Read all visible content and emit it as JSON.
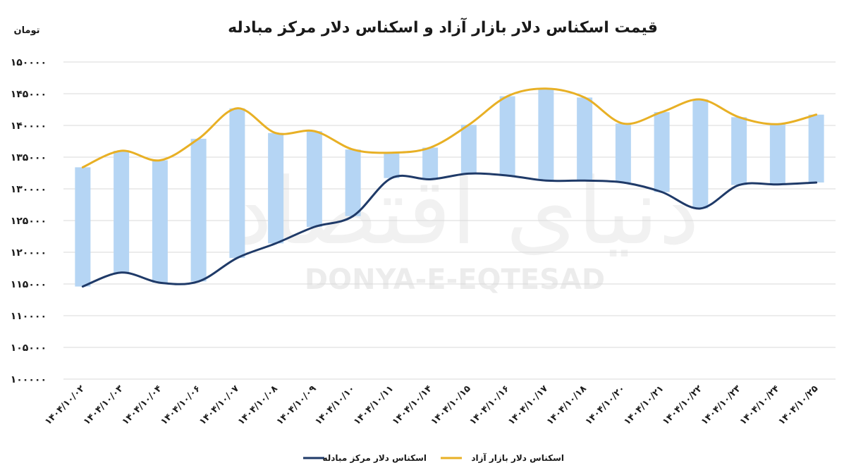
{
  "watermark": {
    "persian": "دنیای اقتصاد",
    "latin": "DONYA-E-EQTESAD"
  },
  "chart_data": {
    "type": "line",
    "title": "قیمت اسکناس دلار بازار آزاد و اسکناس دلار مرکز مبادله",
    "ylabel": "تومان",
    "ylim": [
      100000,
      150000
    ],
    "ytick_step": 5000,
    "yticks": [
      "۱۰۰۰۰۰",
      "۱۰۵۰۰۰",
      "۱۱۰۰۰۰",
      "۱۱۵۰۰۰",
      "۱۲۰۰۰۰",
      "۱۲۵۰۰۰",
      "۱۳۰۰۰۰",
      "۱۳۵۰۰۰",
      "۱۴۰۰۰۰",
      "۱۴۵۰۰۰",
      "۱۵۰۰۰۰"
    ],
    "categories": [
      "۱۴۰۴/۱۰/۰۲",
      "۱۴۰۴/۱۰/۰۳",
      "۱۴۰۴/۱۰/۰۴",
      "۱۴۰۴/۱۰/۰۶",
      "۱۴۰۴/۱۰/۰۷",
      "۱۴۰۴/۱۰/۰۸",
      "۱۴۰۴/۱۰/۰۹",
      "۱۴۰۴/۱۰/۱۰",
      "۱۴۰۴/۱۰/۱۱",
      "۱۴۰۴/۱۰/۱۴",
      "۱۴۰۴/۱۰/۱۵",
      "۱۴۰۴/۱۰/۱۶",
      "۱۴۰۴/۱۰/۱۷",
      "۱۴۰۴/۱۰/۱۸",
      "۱۴۰۴/۱۰/۲۰",
      "۱۴۰۴/۱۰/۲۱",
      "۱۴۰۴/۱۰/۲۲",
      "۱۴۰۴/۱۰/۲۳",
      "۱۴۰۴/۱۰/۲۴",
      "۱۴۰۴/۱۰/۲۵"
    ],
    "series": [
      {
        "name": "اسکناس دلار بازار آزاد",
        "color": "#E8B025",
        "values": [
          133400,
          136000,
          134500,
          137900,
          142700,
          138800,
          139100,
          136200,
          135700,
          136500,
          140100,
          144600,
          145800,
          144400,
          140300,
          142100,
          144100,
          141300,
          140200,
          141700
        ]
      },
      {
        "name": "اسکناس دلار مرکز مبادله",
        "color": "#1F3A68",
        "values": [
          114600,
          116800,
          115200,
          115400,
          119100,
          121400,
          124000,
          125700,
          131700,
          131500,
          132400,
          132100,
          131300,
          131300,
          131000,
          129500,
          126900,
          130600,
          130700,
          131000
        ]
      }
    ],
    "bar_color": "#B5D5F4",
    "grid": true,
    "legend_position": "bottom-center"
  }
}
